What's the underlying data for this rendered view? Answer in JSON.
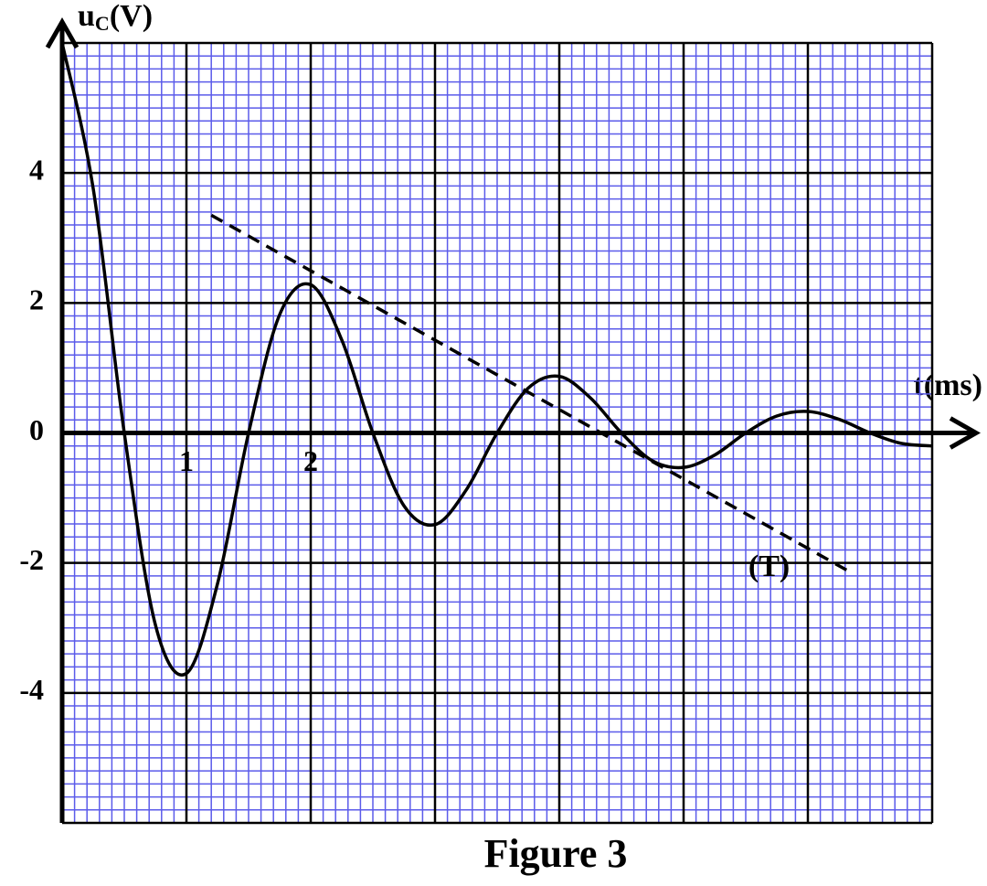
{
  "chart_data": {
    "type": "line",
    "y_label_parts": [
      "u",
      "C",
      "(V)"
    ],
    "x_label": "t(ms)",
    "caption": "Figure 3",
    "xlim": [
      0,
      7
    ],
    "ylim": [
      -6,
      6
    ],
    "xticks": [
      1,
      2
    ],
    "yticks": [
      -4,
      -2,
      0,
      2,
      4
    ],
    "grid": {
      "x_major": 1,
      "x_minor": 0.1,
      "y_major": 2,
      "y_minor": 0.2,
      "major_color": "#000000",
      "minor_color": "#5b5bea"
    },
    "series": [
      {
        "name": null,
        "color": "#000000",
        "style": "solid",
        "x": [
          0,
          0.25,
          0.5,
          0.75,
          1,
          1.25,
          1.5,
          1.75,
          2,
          2.25,
          2.5,
          2.75,
          3,
          3.25,
          3.5,
          3.75,
          4,
          4.25,
          4.5,
          4.75,
          5,
          5.25,
          5.5,
          5.75,
          6,
          6.25,
          6.5,
          6.75,
          7
        ],
        "values": [
          6,
          3.76,
          0,
          -2.95,
          -3.7,
          -2.32,
          0,
          1.82,
          2.28,
          1.43,
          0,
          -1.12,
          -1.41,
          -0.88,
          0,
          0.69,
          0.87,
          0.54,
          0,
          -0.43,
          -0.53,
          -0.34,
          0,
          0.26,
          0.33,
          0.21,
          0,
          -0.16,
          -0.2
        ]
      },
      {
        "name": "(T)",
        "color": "#000000",
        "style": "dashed",
        "x": [
          1.2,
          6.35
        ],
        "values": [
          3.35,
          -2.15
        ]
      }
    ]
  }
}
